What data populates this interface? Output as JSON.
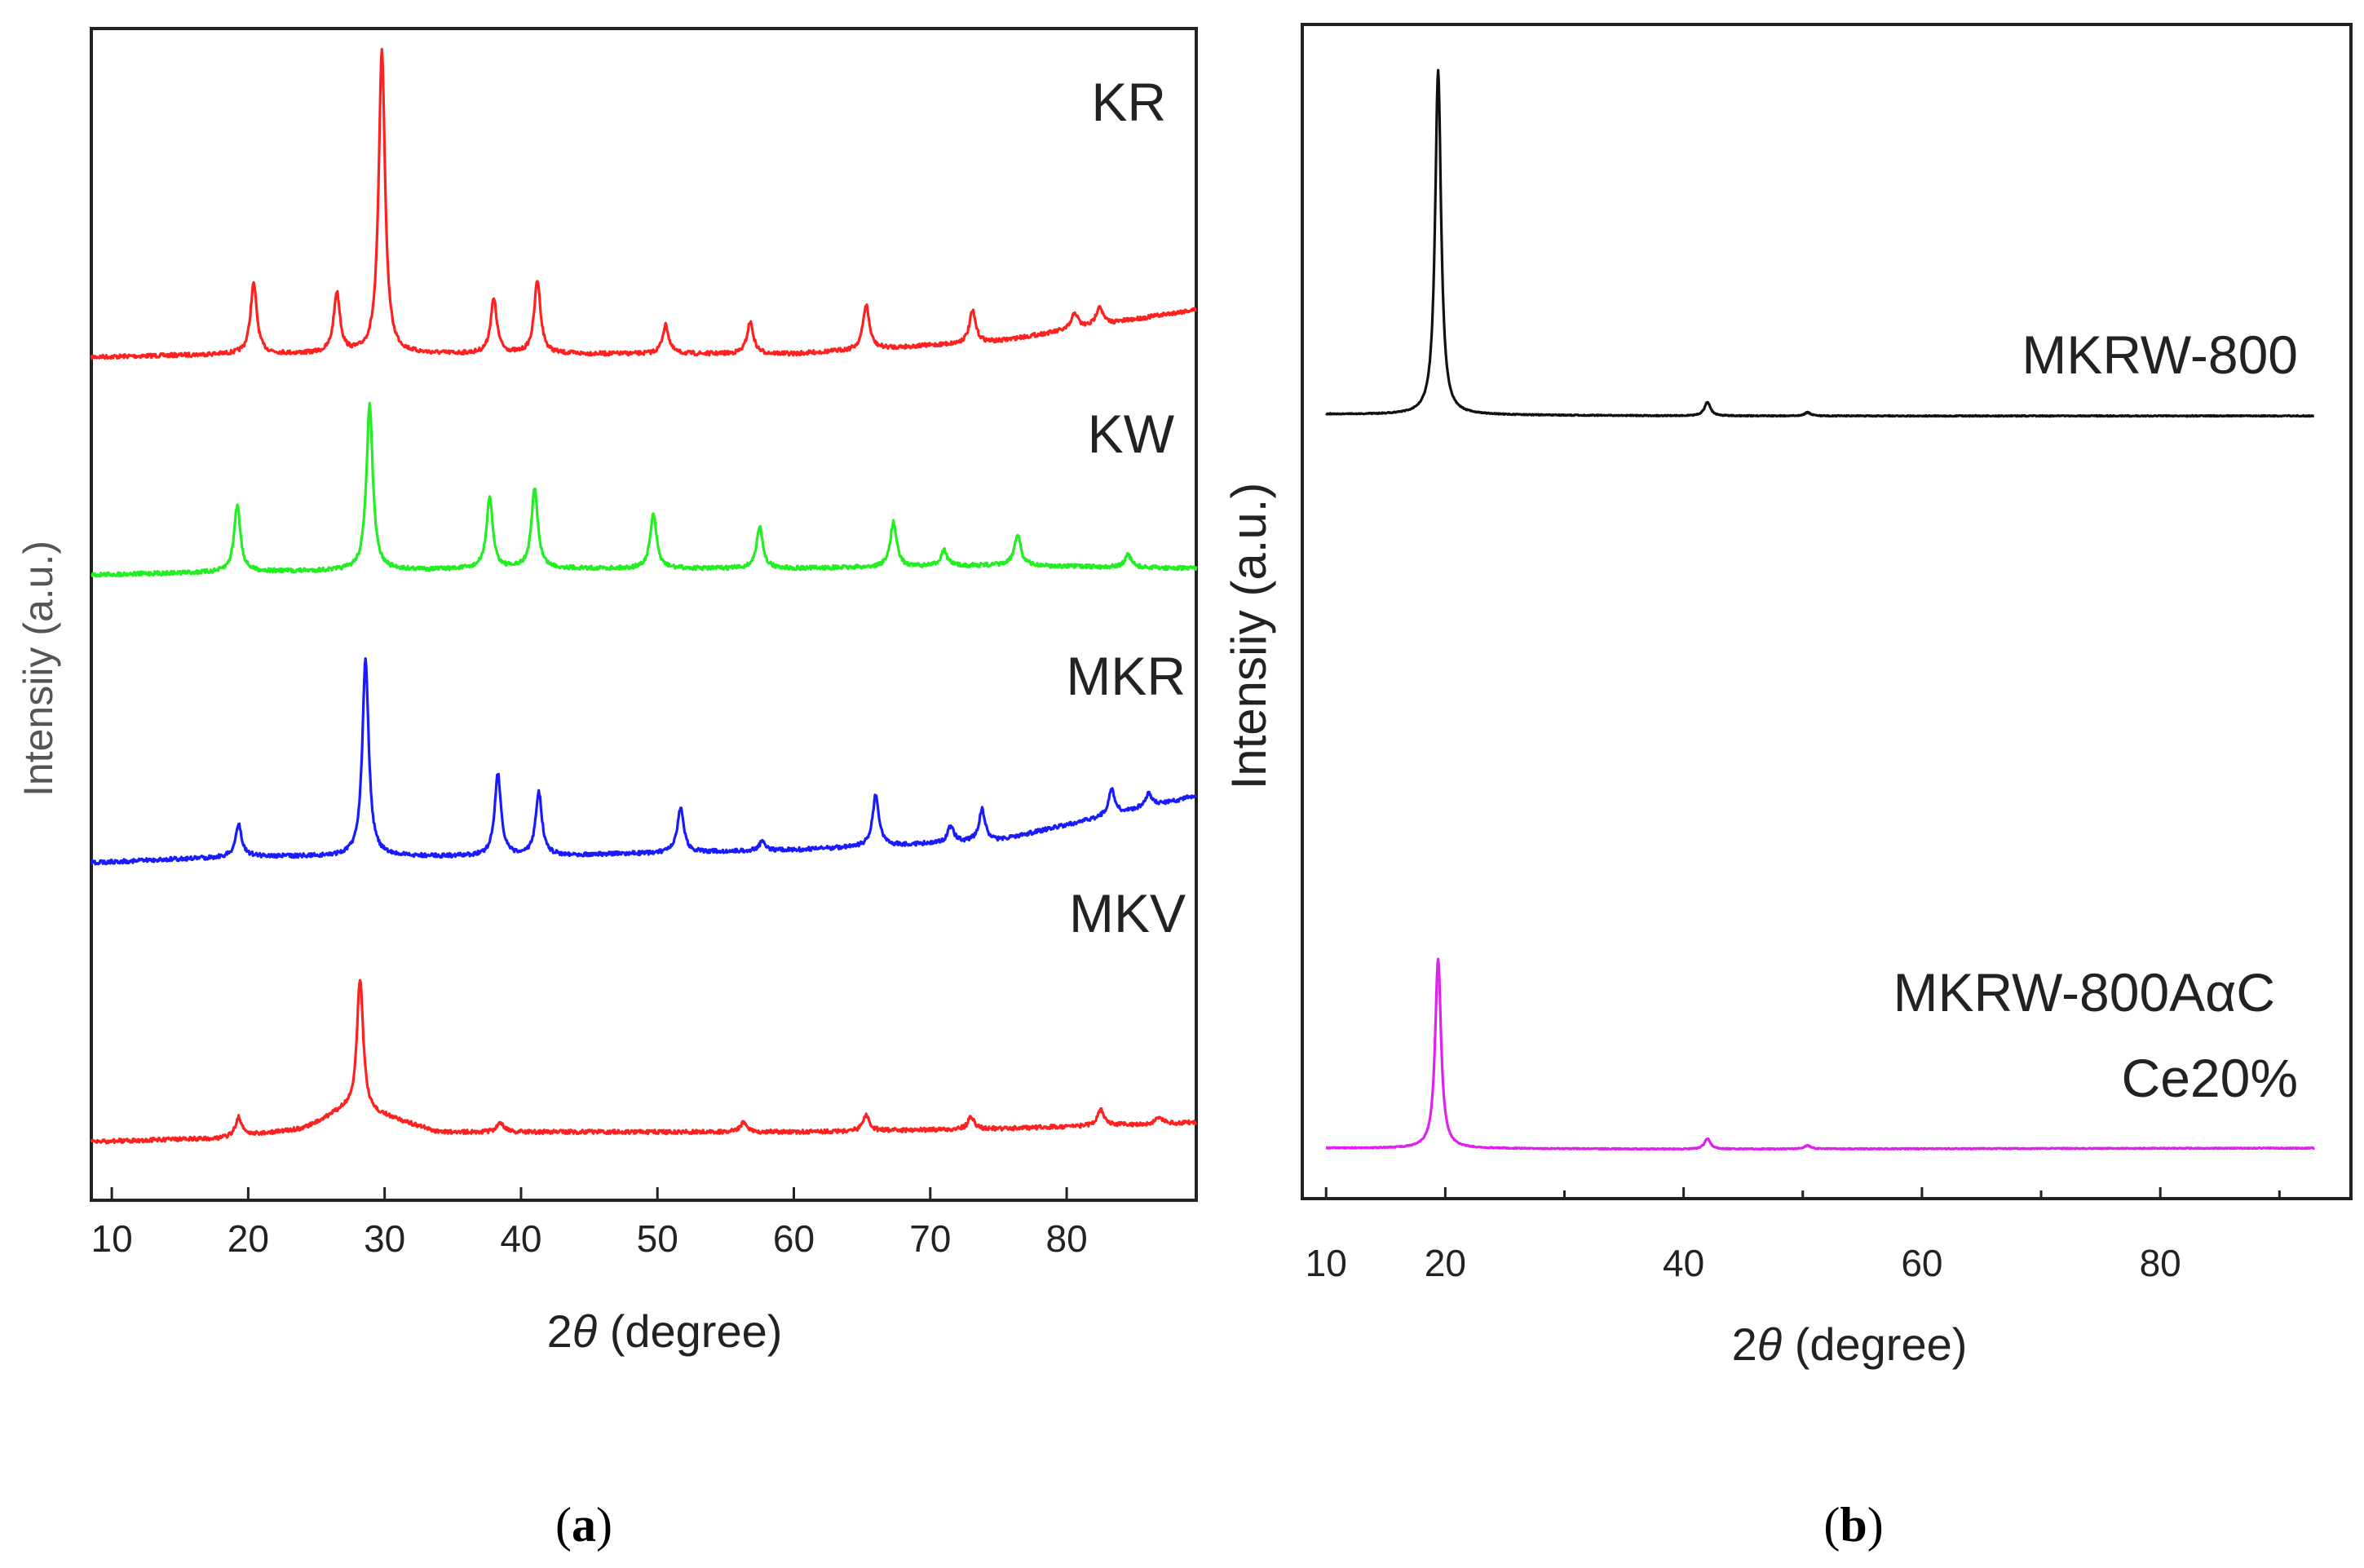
{
  "chart_data": [
    {
      "panel": "a",
      "type": "line",
      "caption": "a",
      "xlabel_prefix": "2",
      "xlabel_symbol": "θ",
      "xlabel_suffix": " (degree)",
      "ylabel": "Intensiiy (a.u.)",
      "xlim": [
        8.5,
        89.5
      ],
      "xticks": [
        10,
        20,
        30,
        40,
        50,
        60,
        70,
        80
      ],
      "yticks": [],
      "grid": false,
      "series": [
        {
          "name": "KR",
          "color": "#ff2020",
          "baseline": [
            [
              8.5,
              0.0
            ],
            [
              20,
              0.01
            ],
            [
              40,
              0.01
            ],
            [
              60,
              0.01
            ],
            [
              75,
              0.05
            ],
            [
              89.5,
              0.15
            ]
          ],
          "peaks": [
            [
              20.4,
              0.22
            ],
            [
              26.5,
              0.19
            ],
            [
              29.8,
              0.95
            ],
            [
              38.0,
              0.17
            ],
            [
              41.2,
              0.23
            ],
            [
              50.6,
              0.09
            ],
            [
              56.8,
              0.1
            ],
            [
              65.3,
              0.14
            ],
            [
              73.1,
              0.1
            ],
            [
              80.6,
              0.05
            ],
            [
              82.4,
              0.06
            ]
          ]
        },
        {
          "name": "KW",
          "color": "#22ee22",
          "baseline": [
            [
              8.5,
              0.0
            ],
            [
              20,
              0.01
            ],
            [
              40,
              0.02
            ],
            [
              60,
              0.02
            ],
            [
              75,
              0.03
            ],
            [
              89.5,
              0.02
            ]
          ],
          "peaks": [
            [
              19.2,
              0.21
            ],
            [
              28.9,
              0.52
            ],
            [
              37.7,
              0.22
            ],
            [
              41.0,
              0.25
            ],
            [
              49.7,
              0.17
            ],
            [
              57.5,
              0.13
            ],
            [
              67.3,
              0.14
            ],
            [
              71.0,
              0.05
            ],
            [
              76.4,
              0.1
            ],
            [
              84.5,
              0.04
            ]
          ]
        },
        {
          "name": "MKR",
          "color": "#1a1aff",
          "baseline": [
            [
              8.5,
              0.0
            ],
            [
              20,
              0.02
            ],
            [
              40,
              0.02
            ],
            [
              60,
              0.04
            ],
            [
              75,
              0.07
            ],
            [
              89.5,
              0.21
            ]
          ],
          "peaks": [
            [
              19.3,
              0.1
            ],
            [
              28.6,
              0.62
            ],
            [
              38.3,
              0.26
            ],
            [
              41.3,
              0.2
            ],
            [
              51.7,
              0.14
            ],
            [
              57.7,
              0.03
            ],
            [
              66.0,
              0.16
            ],
            [
              71.5,
              0.05
            ],
            [
              73.8,
              0.1
            ],
            [
              83.3,
              0.08
            ],
            [
              86.0,
              0.04
            ]
          ]
        },
        {
          "name": "MKV",
          "color": "#ff2020",
          "baseline": [
            [
              8.5,
              0.0
            ],
            [
              18,
              0.01
            ],
            [
              24,
              0.04
            ],
            [
              27,
              0.1
            ],
            [
              30,
              0.08
            ],
            [
              34,
              0.03
            ],
            [
              40,
              0.03
            ],
            [
              60,
              0.03
            ],
            [
              75,
              0.04
            ],
            [
              89.5,
              0.06
            ]
          ],
          "peaks": [
            [
              19.3,
              0.06
            ],
            [
              28.2,
              0.42
            ],
            [
              38.5,
              0.03
            ],
            [
              56.3,
              0.03
            ],
            [
              65.3,
              0.05
            ],
            [
              73.0,
              0.04
            ],
            [
              82.5,
              0.05
            ],
            [
              86.8,
              0.02
            ]
          ]
        }
      ]
    },
    {
      "panel": "b",
      "type": "line",
      "caption": "b",
      "xlabel_prefix": "2",
      "xlabel_symbol": "θ",
      "xlabel_suffix": " (degree)",
      "ylabel": "Intensiiy (a.u.)",
      "xlim": [
        8,
        96
      ],
      "xticks": [
        10,
        20,
        40,
        60,
        80
      ],
      "minor_xticks": [
        30,
        50,
        70,
        90
      ],
      "yticks": [],
      "grid": false,
      "series": [
        {
          "name": "MKRW-800",
          "label_lines": [
            "MKRW-800"
          ],
          "color": "#111111",
          "baseline": [
            [
              10,
              0.0
            ],
            [
              40,
              -0.005
            ],
            [
              94,
              -0.005
            ]
          ],
          "peaks": [
            [
              19.4,
              1.0
            ],
            [
              42.0,
              0.04
            ],
            [
              50.4,
              0.01
            ]
          ]
        },
        {
          "name": "MKRW-800AαC Ce20%",
          "label_lines": [
            "MKRW-800AαC",
            "Ce20%"
          ],
          "color": "#dd22ee",
          "baseline": [
            [
              10,
              0.0
            ],
            [
              40,
              -0.003
            ],
            [
              94,
              0.0
            ]
          ],
          "peaks": [
            [
              19.4,
              0.55
            ],
            [
              42.0,
              0.03
            ],
            [
              50.4,
              0.01
            ]
          ]
        }
      ]
    }
  ]
}
